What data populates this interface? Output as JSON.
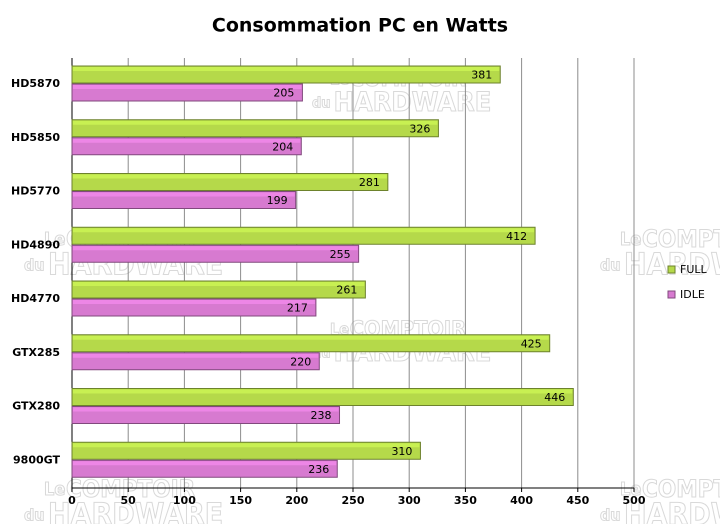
{
  "chart_data": {
    "type": "bar",
    "orientation": "horizontal",
    "title": "Consommation PC en Watts",
    "categories": [
      "HD5870",
      "HD5850",
      "HD5770",
      "HD4890",
      "HD4770",
      "GTX285",
      "GTX280",
      "9800GT"
    ],
    "series": [
      {
        "name": "FULL",
        "color": "#b5d94a",
        "values": [
          381,
          326,
          281,
          412,
          261,
          425,
          446,
          310
        ]
      },
      {
        "name": "IDLE",
        "color": "#d77ad0",
        "values": [
          205,
          204,
          199,
          255,
          217,
          220,
          238,
          236
        ]
      }
    ],
    "xlim": [
      0,
      500
    ],
    "xticks": [
      0,
      50,
      100,
      150,
      200,
      250,
      300,
      350,
      400,
      450,
      500
    ],
    "grid": true,
    "legend": "right",
    "watermark": [
      "Le",
      "COMPTOIR",
      "du",
      "HARDWARE"
    ]
  }
}
